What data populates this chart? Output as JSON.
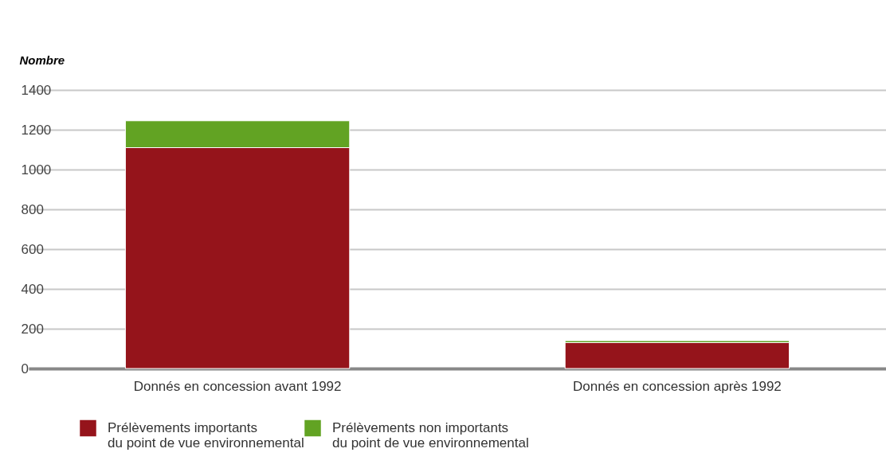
{
  "chart_data": {
    "type": "bar",
    "stacked": true,
    "ylabel": "Nombre",
    "categories": [
      "Donnés en concession avant 1992",
      "Donnés en concession après 1992"
    ],
    "series": [
      {
        "name": "Prélèvements importants\ndu point de vue environnemental",
        "color": "#95141b",
        "values": [
          1110,
          130
        ]
      },
      {
        "name": "Prélèvements non importants\ndu point de vue environnemental",
        "color": "#62a323",
        "values": [
          135,
          10
        ]
      }
    ],
    "ylim": [
      0,
      1400
    ],
    "yticks": [
      0,
      200,
      400,
      600,
      800,
      1000,
      1200,
      1400
    ],
    "grid": "y",
    "legend": "bottom"
  }
}
